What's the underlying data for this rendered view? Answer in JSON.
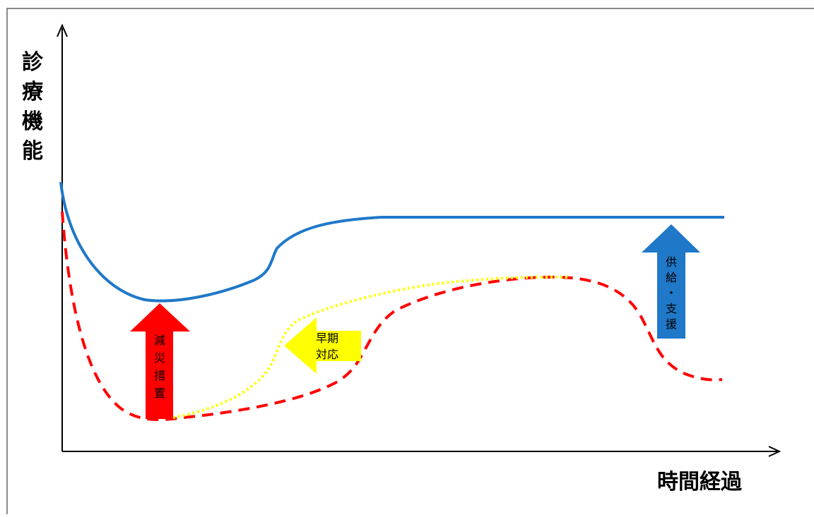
{
  "axes": {
    "y_label": "診療機能",
    "x_label": "時間経過"
  },
  "labels": {
    "mitigation": "減災措置",
    "early_response": [
      "早期",
      "対応"
    ],
    "supply_support": "供給・支援"
  },
  "colors": {
    "frame": "#8a8a8a",
    "axis": "#000000",
    "blue_curve": "#1f78c8",
    "red_curve": "#ff0000",
    "yellow_curve": "#ffff00",
    "mitigation_arrow": "#ff0000",
    "early_response_arrow": "#ffff00",
    "supply_support_arrow": "#1f78c8"
  }
}
